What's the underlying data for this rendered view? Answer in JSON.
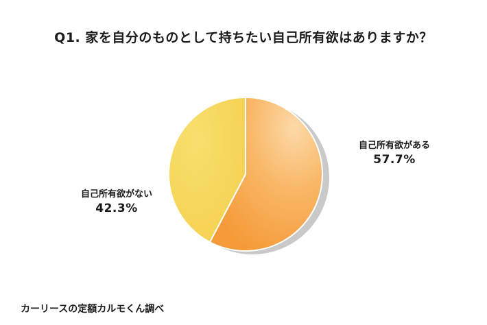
{
  "chart_data": {
    "type": "pie",
    "title": "Q1. 家を自分のものとして持ちたい自己所有欲はありますか？",
    "slices": [
      {
        "label": "自己所有欲がある",
        "value": 57.7,
        "display": "57.7%",
        "color": "#F7A646"
      },
      {
        "label": "自己所有欲がない",
        "value": 42.3,
        "display": "42.3%",
        "color": "#F6D553"
      }
    ],
    "start_angle_deg": 0,
    "direction": "clockwise",
    "source": "カーリースの定額カルモくん調べ"
  }
}
